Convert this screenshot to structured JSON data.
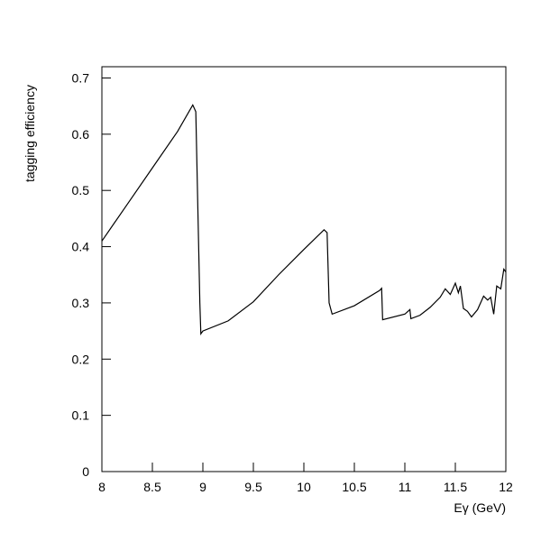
{
  "chart_data": {
    "type": "line",
    "x_label": "Eγ (GeV)",
    "y_label": "tagging efficiency",
    "x": [
      8,
      8.25,
      8.5,
      8.75,
      8.9,
      8.93,
      8.97,
      8.98,
      9.0,
      9.25,
      9.5,
      9.75,
      10.0,
      10.2,
      10.23,
      10.25,
      10.28,
      10.5,
      10.75,
      10.77,
      10.78,
      11.0,
      11.05,
      11.06,
      11.15,
      11.25,
      11.35,
      11.4,
      11.45,
      11.5,
      11.53,
      11.55,
      11.58,
      11.62,
      11.66,
      11.72,
      11.78,
      11.82,
      11.85,
      11.88,
      11.91,
      11.95,
      11.98,
      12.0
    ],
    "series": [
      {
        "color": "#000000",
        "values": [
          0.41,
          0.475,
          0.54,
          0.605,
          0.652,
          0.64,
          0.3,
          0.245,
          0.25,
          0.268,
          0.302,
          0.35,
          0.395,
          0.43,
          0.425,
          0.3,
          0.28,
          0.295,
          0.322,
          0.326,
          0.27,
          0.28,
          0.288,
          0.272,
          0.278,
          0.292,
          0.31,
          0.325,
          0.315,
          0.335,
          0.318,
          0.33,
          0.29,
          0.285,
          0.275,
          0.288,
          0.312,
          0.305,
          0.31,
          0.28,
          0.33,
          0.325,
          0.36,
          0.355
        ]
      }
    ],
    "xlim": [
      8,
      12
    ],
    "ylim": [
      0,
      0.72
    ],
    "xticks": [
      8,
      8.5,
      9,
      9.5,
      10,
      10.5,
      11,
      11.5,
      12
    ],
    "yticks": [
      0,
      0.1,
      0.2,
      0.3,
      0.4,
      0.5,
      0.6,
      0.7
    ]
  }
}
